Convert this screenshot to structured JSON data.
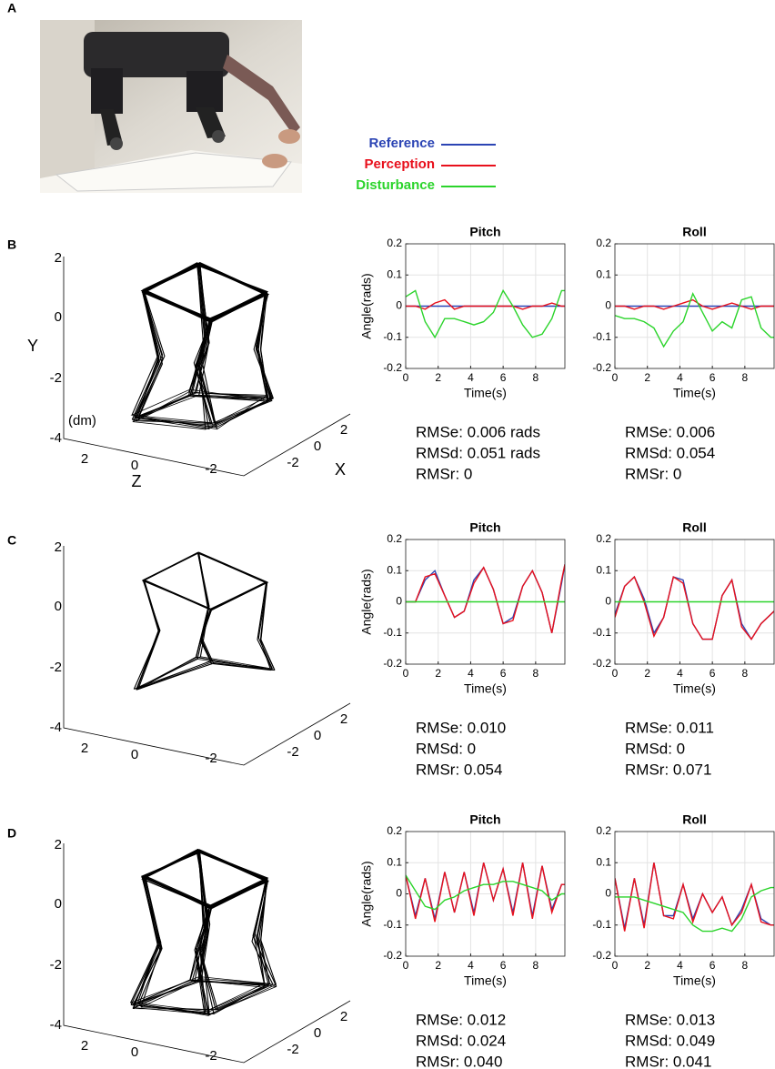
{
  "panel_letters": [
    "A",
    "B",
    "C",
    "D"
  ],
  "legend": [
    {
      "name": "Reference",
      "color": "#2b44b4"
    },
    {
      "name": "Perception",
      "color": "#e8101c"
    },
    {
      "name": "Disturbance",
      "color": "#2bd42b"
    }
  ],
  "wireframes": [
    {
      "yticks": [
        2,
        0,
        -2,
        -4
      ],
      "zticks": [
        2,
        0,
        -2
      ],
      "xticks": [
        -2,
        0,
        2
      ],
      "ylabel": "Y",
      "zlabel": "Z",
      "xlabel": "X",
      "unit": "(dm)"
    },
    {
      "yticks": [
        2,
        0,
        -2,
        -4
      ],
      "zticks": [
        2,
        0,
        -2
      ],
      "xticks": [
        -2,
        0,
        2
      ]
    },
    {
      "yticks": [
        2,
        0,
        -2,
        -4
      ],
      "zticks": [
        2,
        0,
        -2
      ],
      "xticks": [
        -2,
        0,
        2
      ]
    }
  ],
  "chart_data": [
    {
      "type": "line",
      "title": "Pitch",
      "xlabel": "Time(s)",
      "ylabel": "Angle(rads)",
      "x": [
        0,
        0.6,
        1.2,
        1.8,
        2.4,
        3,
        3.6,
        4.2,
        4.8,
        5.4,
        6,
        6.6,
        7.2,
        7.8,
        8.4,
        9,
        9.6,
        9.8
      ],
      "xlim": [
        0,
        9.8
      ],
      "xticks": [
        0,
        2,
        4,
        6,
        8
      ],
      "ylim": [
        -0.2,
        0.2
      ],
      "yticks": [
        0.2,
        0.1,
        0,
        -0.1,
        -0.2
      ],
      "grid": true,
      "series": [
        {
          "values": [
            0,
            0,
            0,
            0,
            0,
            0,
            0,
            0,
            0,
            0,
            0,
            0,
            0,
            0,
            0,
            0,
            0,
            0
          ]
        },
        {
          "values": [
            0,
            0,
            -0.01,
            0.01,
            0.02,
            -0.01,
            0,
            0,
            0,
            0,
            0,
            0,
            -0.01,
            0,
            0,
            0.01,
            0,
            0
          ]
        },
        {
          "values": [
            0.03,
            0.05,
            -0.05,
            -0.1,
            -0.04,
            -0.04,
            -0.05,
            -0.06,
            -0.05,
            -0.02,
            0.05,
            0.0,
            -0.06,
            -0.1,
            -0.09,
            -0.04,
            0.05,
            0.05
          ]
        }
      ],
      "annotations": [
        "RMSe: 0.006 rads",
        "RMSd: 0.051 rads",
        "RMSr: 0"
      ]
    },
    {
      "type": "line",
      "title": "Roll",
      "xlabel": "Time(s)",
      "x": [
        0,
        0.6,
        1.2,
        1.8,
        2.4,
        3,
        3.6,
        4.2,
        4.8,
        5.4,
        6,
        6.6,
        7.2,
        7.8,
        8.4,
        9,
        9.6,
        9.8
      ],
      "xlim": [
        0,
        9.8
      ],
      "xticks": [
        0,
        2,
        4,
        6,
        8
      ],
      "ylim": [
        -0.2,
        0.2
      ],
      "yticks": [
        0.2,
        0.1,
        0,
        -0.1,
        -0.2
      ],
      "grid": true,
      "series": [
        {
          "values": [
            0,
            0,
            0,
            0,
            0,
            0,
            0,
            0,
            0,
            0,
            0,
            0,
            0,
            0,
            0,
            0,
            0,
            0
          ]
        },
        {
          "values": [
            0,
            0,
            -0.01,
            0,
            0,
            -0.01,
            0,
            0.01,
            0.02,
            0,
            -0.01,
            0,
            0.01,
            0,
            -0.01,
            0,
            0,
            0
          ]
        },
        {
          "values": [
            -0.03,
            -0.04,
            -0.04,
            -0.05,
            -0.07,
            -0.13,
            -0.08,
            -0.05,
            0.04,
            -0.02,
            -0.08,
            -0.05,
            -0.07,
            0.02,
            0.03,
            -0.07,
            -0.1,
            -0.1
          ]
        }
      ],
      "annotations": [
        "RMSe: 0.006",
        "RMSd: 0.054",
        "RMSr: 0"
      ]
    },
    {
      "type": "line",
      "title": "Pitch",
      "xlabel": "Time(s)",
      "ylabel": "Angle(rads)",
      "x": [
        0,
        0.6,
        1.2,
        1.8,
        2.4,
        3,
        3.6,
        4.2,
        4.8,
        5.4,
        6,
        6.6,
        7.2,
        7.8,
        8.4,
        9,
        9.6,
        9.8
      ],
      "xlim": [
        0,
        9.8
      ],
      "xticks": [
        0,
        2,
        4,
        6,
        8
      ],
      "ylim": [
        -0.2,
        0.2
      ],
      "yticks": [
        0.2,
        0.1,
        0,
        -0.1,
        -0.2
      ],
      "grid": true,
      "series": [
        {
          "values": [
            0,
            0,
            0.07,
            0.1,
            0.02,
            -0.05,
            -0.03,
            0.07,
            0.11,
            0.04,
            -0.07,
            -0.05,
            0.05,
            0.1,
            0.03,
            -0.1,
            0.06,
            0.12
          ]
        },
        {
          "values": [
            0,
            0,
            0.08,
            0.09,
            0.02,
            -0.05,
            -0.03,
            0.06,
            0.11,
            0.04,
            -0.07,
            -0.06,
            0.05,
            0.1,
            0.03,
            -0.1,
            0.07,
            0.12
          ]
        },
        {
          "values": [
            0,
            0,
            0,
            0,
            0,
            0,
            0,
            0,
            0,
            0,
            0,
            0,
            0,
            0,
            0,
            0,
            0,
            0
          ]
        }
      ],
      "annotations": [
        "RMSe: 0.010",
        "RMSd: 0",
        "RMSr: 0.054"
      ]
    },
    {
      "type": "line",
      "title": "Roll",
      "xlabel": "Time(s)",
      "x": [
        0,
        0.6,
        1.2,
        1.8,
        2.4,
        3,
        3.6,
        4.2,
        4.8,
        5.4,
        6,
        6.6,
        7.2,
        7.8,
        8.4,
        9,
        9.6,
        9.8
      ],
      "xlim": [
        0,
        9.8
      ],
      "xticks": [
        0,
        2,
        4,
        6,
        8
      ],
      "ylim": [
        -0.2,
        0.2
      ],
      "yticks": [
        0.2,
        0.1,
        0,
        -0.1,
        -0.2
      ],
      "grid": true,
      "series": [
        {
          "values": [
            -0.04,
            0.05,
            0.08,
            0.01,
            -0.1,
            -0.05,
            0.08,
            0.07,
            -0.07,
            -0.12,
            -0.12,
            0.02,
            0.07,
            -0.07,
            -0.12,
            -0.07,
            -0.04,
            -0.03
          ]
        },
        {
          "values": [
            -0.05,
            0.05,
            0.08,
            0.0,
            -0.11,
            -0.05,
            0.08,
            0.06,
            -0.07,
            -0.12,
            -0.12,
            0.02,
            0.07,
            -0.08,
            -0.12,
            -0.07,
            -0.04,
            -0.03
          ]
        },
        {
          "values": [
            0,
            0,
            0,
            0,
            0,
            0,
            0,
            0,
            0,
            0,
            0,
            0,
            0,
            0,
            0,
            0,
            0,
            0
          ]
        }
      ],
      "annotations": [
        "RMSe: 0.011",
        "RMSd: 0",
        "RMSr: 0.071"
      ]
    },
    {
      "type": "line",
      "title": "Pitch",
      "xlabel": "Time(s)",
      "ylabel": "Angle(rads)",
      "x": [
        0,
        0.6,
        1.2,
        1.8,
        2.4,
        3,
        3.6,
        4.2,
        4.8,
        5.4,
        6,
        6.6,
        7.2,
        7.8,
        8.4,
        9,
        9.6,
        9.8
      ],
      "xlim": [
        0,
        9.8
      ],
      "xticks": [
        0,
        2,
        4,
        6,
        8
      ],
      "ylim": [
        -0.2,
        0.2
      ],
      "yticks": [
        0.2,
        0.1,
        0,
        -0.1,
        -0.2
      ],
      "grid": true,
      "series": [
        {
          "values": [
            0.06,
            -0.07,
            0.05,
            -0.08,
            0.07,
            -0.06,
            0.07,
            -0.06,
            0.1,
            -0.02,
            0.08,
            -0.06,
            0.1,
            -0.07,
            0.09,
            -0.05,
            0.03,
            0.03
          ]
        },
        {
          "values": [
            0.06,
            -0.08,
            0.05,
            -0.09,
            0.07,
            -0.06,
            0.07,
            -0.07,
            0.1,
            -0.02,
            0.08,
            -0.07,
            0.1,
            -0.08,
            0.09,
            -0.06,
            0.03,
            0.03
          ]
        },
        {
          "values": [
            0.06,
            0.01,
            -0.04,
            -0.05,
            -0.02,
            -0.01,
            0.01,
            0.02,
            0.03,
            0.03,
            0.04,
            0.04,
            0.03,
            0.02,
            0.01,
            -0.02,
            0.0,
            0.0
          ]
        }
      ],
      "annotations": [
        "RMSe: 0.012",
        "RMSd: 0.024",
        "RMSr: 0.040"
      ]
    },
    {
      "type": "line",
      "title": "Roll",
      "xlabel": "Time(s)",
      "x": [
        0,
        0.6,
        1.2,
        1.8,
        2.4,
        3,
        3.6,
        4.2,
        4.8,
        5.4,
        6,
        6.6,
        7.2,
        7.8,
        8.4,
        9,
        9.6,
        9.8
      ],
      "xlim": [
        0,
        9.8
      ],
      "xticks": [
        0,
        2,
        4,
        6,
        8
      ],
      "ylim": [
        -0.2,
        0.2
      ],
      "yticks": [
        0.2,
        0.1,
        0,
        -0.1,
        -0.2
      ],
      "grid": true,
      "series": [
        {
          "values": [
            0.05,
            -0.11,
            0.05,
            -0.1,
            0.1,
            -0.07,
            -0.07,
            0.03,
            -0.08,
            0.0,
            -0.06,
            -0.01,
            -0.1,
            -0.05,
            0.03,
            -0.08,
            -0.1,
            -0.1
          ]
        },
        {
          "values": [
            0.05,
            -0.12,
            0.05,
            -0.11,
            0.1,
            -0.07,
            -0.08,
            0.03,
            -0.09,
            0.0,
            -0.06,
            -0.01,
            -0.1,
            -0.06,
            0.03,
            -0.09,
            -0.1,
            -0.1
          ]
        },
        {
          "values": [
            -0.01,
            -0.01,
            -0.01,
            -0.02,
            -0.03,
            -0.04,
            -0.05,
            -0.06,
            -0.1,
            -0.12,
            -0.12,
            -0.11,
            -0.12,
            -0.08,
            -0.01,
            0.01,
            0.02,
            0.02
          ]
        }
      ],
      "annotations": [
        "RMSe: 0.013",
        "RMSd: 0.049",
        "RMSr:  0.041"
      ]
    }
  ]
}
